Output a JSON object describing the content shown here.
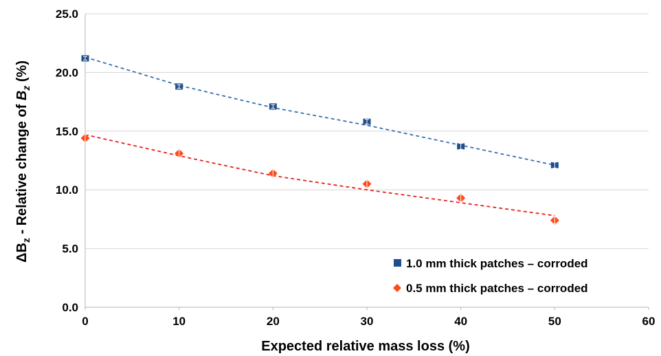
{
  "chart_data": {
    "type": "scatter",
    "xlabel": "Expected relative mass loss (%)",
    "ylabel_prefix": "ΔB",
    "ylabel_sub1": "z",
    "ylabel_mid": " - Relative change of ",
    "ylabel_b": "B",
    "ylabel_sub2": "z",
    "ylabel_suffix": " (%)",
    "xlim": [
      0,
      60
    ],
    "ylim": [
      0,
      25
    ],
    "x_ticks": [
      "0",
      "10",
      "20",
      "30",
      "40",
      "50",
      "60"
    ],
    "y_ticks": [
      "0.0",
      "5.0",
      "10.0",
      "15.0",
      "20.0",
      "25.0"
    ],
    "grid": "horizontal",
    "legend_position": "bottom-right",
    "series": [
      {
        "name": "1.0 mm thick patches – corroded",
        "marker": "square",
        "color": "#1f4e8c",
        "trend_color": "#3a6fb0",
        "x": [
          0,
          10,
          20,
          30,
          40,
          50
        ],
        "y": [
          21.2,
          18.8,
          17.1,
          15.8,
          13.7,
          12.1
        ],
        "error": [
          0.15,
          0.15,
          0.15,
          0.2,
          0.25,
          0.25
        ],
        "trend": [
          [
            0,
            21.3
          ],
          [
            10,
            18.9
          ],
          [
            20,
            17.0
          ],
          [
            30,
            15.5
          ],
          [
            40,
            13.8
          ],
          [
            50,
            12.1
          ]
        ]
      },
      {
        "name": "0.5 mm thick patches – corroded",
        "marker": "diamond",
        "color": "#ff4a1c",
        "trend_color": "#e8201a",
        "x": [
          0,
          10,
          20,
          30,
          40,
          50
        ],
        "y": [
          14.4,
          13.1,
          11.4,
          10.5,
          9.3,
          7.4
        ],
        "error": [
          0.3,
          0.3,
          0.3,
          0.3,
          0.3,
          0.3
        ],
        "trend": [
          [
            0,
            14.7
          ],
          [
            10,
            12.9
          ],
          [
            20,
            11.2
          ],
          [
            30,
            10.0
          ],
          [
            40,
            8.9
          ],
          [
            50,
            7.8
          ]
        ]
      }
    ]
  }
}
